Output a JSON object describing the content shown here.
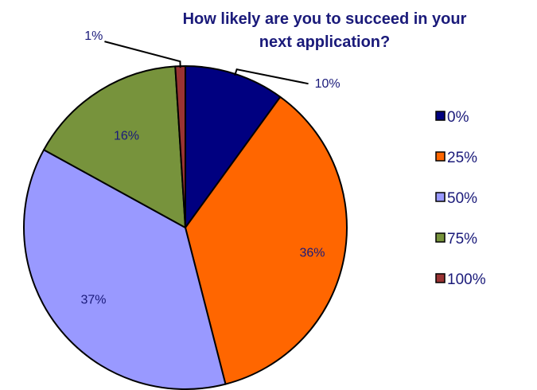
{
  "chart_data": {
    "type": "pie",
    "title": "How likely are you to succeed in your next application?",
    "title_lines": [
      "How likely are you to succeed in your",
      "next application?"
    ],
    "categories": [
      "0%",
      "25%",
      "50%",
      "75%",
      "100%"
    ],
    "values": [
      10,
      36,
      37,
      16,
      1
    ],
    "data_labels": [
      "10%",
      "36%",
      "37%",
      "16%",
      "1%"
    ],
    "colors": [
      "#000080",
      "#ff6600",
      "#9999ff",
      "#77933c",
      "#993333"
    ],
    "legend": {
      "position": "right",
      "items": [
        "0%",
        "25%",
        "50%",
        "75%",
        "100%"
      ]
    },
    "start_angle_deg": 90,
    "direction": "clockwise"
  }
}
